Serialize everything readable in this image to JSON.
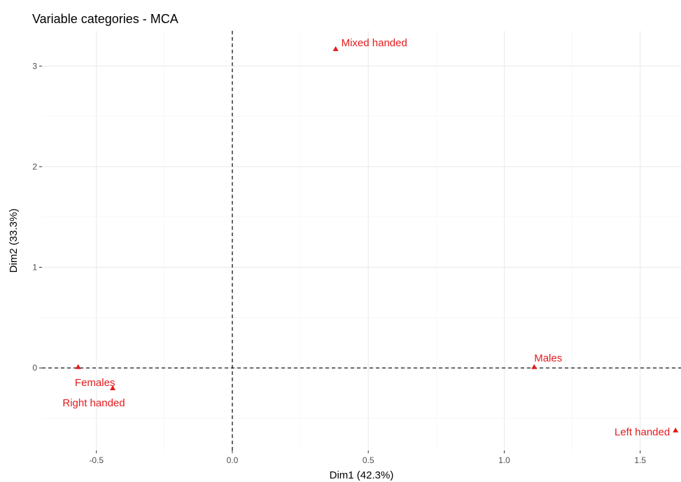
{
  "chart_data": {
    "type": "scatter",
    "title": "Variable categories - MCA",
    "xlabel": "Dim1 (42.3%)",
    "ylabel": "Dim2 (33.3%)",
    "xlim": [
      -0.7,
      1.65
    ],
    "ylim": [
      -0.82,
      3.35
    ],
    "x_ticks": [
      -0.5,
      0.0,
      0.5,
      1.0,
      1.5
    ],
    "x_tick_labels": [
      "-0.5",
      "0.0",
      "0.5",
      "1.0",
      "1.5"
    ],
    "y_ticks": [
      0,
      1,
      2,
      3
    ],
    "y_tick_labels": [
      "0",
      "1",
      "2",
      "3"
    ],
    "grid": true,
    "reference_lines": {
      "x": 0,
      "y": 0
    },
    "marker": "triangle",
    "color": "#e41a1c",
    "points": [
      {
        "label": "Mixed handed",
        "x": 0.38,
        "y": 3.17
      },
      {
        "label": "Males",
        "x": 1.11,
        "y": 0.01
      },
      {
        "label": "Females",
        "x": -0.567,
        "y": 0.01
      },
      {
        "label": "Right handed",
        "x": -0.44,
        "y": -0.2
      },
      {
        "label": "Left handed",
        "x": 1.63,
        "y": -0.62
      }
    ]
  }
}
